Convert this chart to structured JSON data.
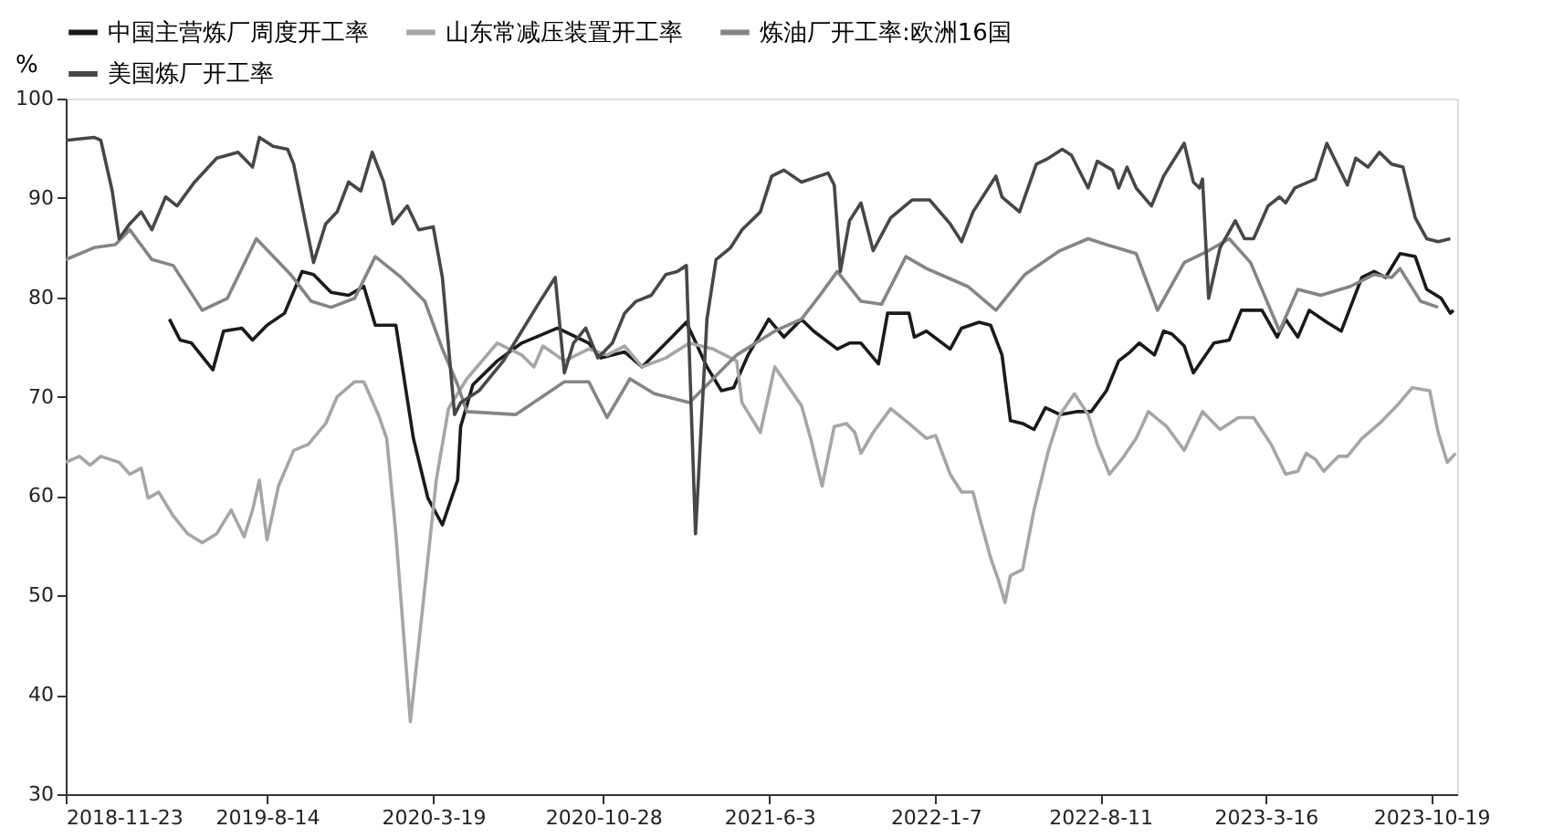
{
  "chart_data": {
    "type": "line",
    "ylabel": "%",
    "xlim": [
      "2018-11-23",
      "2023-11-22"
    ],
    "ylim": [
      30,
      100
    ],
    "yticks": [
      30,
      40,
      50,
      60,
      70,
      80,
      90,
      100
    ],
    "xticks": [
      {
        "value": "2018-11-23",
        "label": "2018-11-23"
      },
      {
        "value": "2019-08-14",
        "label": "2019-8-14"
      },
      {
        "value": "2020-03-19",
        "label": "2020-3-19"
      },
      {
        "value": "2020-10-28",
        "label": "2020-10-28"
      },
      {
        "value": "2021-06-03",
        "label": "2021-6-3"
      },
      {
        "value": "2022-01-07",
        "label": "2022-1-7"
      },
      {
        "value": "2022-08-11",
        "label": "2022-8-11"
      },
      {
        "value": "2023-03-16",
        "label": "2023-3-16"
      },
      {
        "value": "2023-10-19",
        "label": "2023-10-19"
      }
    ],
    "grid": false,
    "legend": "top",
    "marker": "none",
    "line_style": "solid",
    "series": [
      {
        "name": "中国主营炼厂周度开工率",
        "color": "#1a1a1a",
        "x": [
          "2019-04-08",
          "2019-04-22",
          "2019-05-07",
          "2019-06-04",
          "2019-06-18",
          "2019-07-12",
          "2019-07-26",
          "2019-08-14",
          "2019-09-06",
          "2019-09-29",
          "2019-10-14",
          "2019-11-06",
          "2019-11-29",
          "2019-12-19",
          "2020-01-03",
          "2020-01-30",
          "2020-02-22",
          "2020-03-12",
          "2020-03-31",
          "2020-04-20",
          "2020-04-24",
          "2020-05-10",
          "2020-06-11",
          "2020-07-13",
          "2020-08-29",
          "2020-10-09",
          "2020-10-25",
          "2020-11-25",
          "2020-12-18",
          "2021-01-26",
          "2021-02-14",
          "2021-03-13",
          "2021-04-01",
          "2021-04-17",
          "2021-05-06",
          "2021-06-02",
          "2021-06-22",
          "2021-07-15",
          "2021-07-31",
          "2021-08-31",
          "2021-09-16",
          "2021-10-01",
          "2021-10-24",
          "2021-11-05",
          "2021-12-03",
          "2021-12-10",
          "2021-12-26",
          "2022-01-26",
          "2022-02-10",
          "2022-03-05",
          "2022-03-20",
          "2022-04-04",
          "2022-04-15",
          "2022-05-01",
          "2022-05-16",
          "2022-05-31",
          "2022-06-19",
          "2022-07-11",
          "2022-07-30",
          "2022-08-19",
          "2022-09-04",
          "2022-09-19",
          "2022-10-01",
          "2022-10-21",
          "2022-11-02",
          "2022-11-13",
          "2022-11-29",
          "2022-12-11",
          "2023-01-07",
          "2023-01-27",
          "2023-02-12",
          "2023-03-11",
          "2023-03-31",
          "2023-04-11",
          "2023-04-27",
          "2023-05-12",
          "2023-06-04",
          "2023-06-23",
          "2023-07-20",
          "2023-08-05",
          "2023-08-20",
          "2023-09-08",
          "2023-09-28",
          "2023-10-13",
          "2023-11-01",
          "2023-11-13",
          "2023-11-17"
        ],
        "values": [
          77.8,
          75.7,
          75.4,
          72.7,
          76.6,
          76.9,
          75.7,
          77.2,
          78.4,
          82.6,
          82.3,
          80.5,
          80.2,
          81.1,
          77.2,
          77.2,
          65.8,
          59.8,
          57.1,
          61.6,
          67.0,
          71.2,
          73.6,
          75.4,
          76.9,
          75.4,
          73.9,
          74.5,
          73.0,
          76.0,
          77.5,
          73.0,
          70.6,
          70.9,
          74.2,
          77.8,
          76.0,
          77.8,
          76.6,
          74.8,
          75.4,
          75.4,
          73.3,
          78.4,
          78.4,
          76.0,
          76.6,
          74.8,
          76.9,
          77.5,
          77.2,
          74.2,
          67.6,
          67.3,
          66.7,
          68.9,
          68.2,
          68.5,
          68.5,
          70.6,
          73.6,
          74.5,
          75.4,
          74.2,
          76.6,
          76.3,
          75.1,
          72.4,
          75.4,
          75.7,
          78.7,
          78.7,
          76.0,
          77.8,
          76.0,
          78.7,
          77.5,
          76.6,
          82.0,
          82.6,
          82.0,
          84.4,
          84.1,
          80.8,
          79.9,
          78.4,
          78.7
        ]
      },
      {
        "name": "山东常减压装置开工率",
        "color": "#a6a6a6",
        "x": [
          "2018-11-23",
          "2018-12-11",
          "2018-12-25",
          "2019-01-08",
          "2019-02-01",
          "2019-02-15",
          "2019-03-02",
          "2019-03-11",
          "2019-03-25",
          "2019-04-13",
          "2019-05-02",
          "2019-05-21",
          "2019-06-09",
          "2019-06-28",
          "2019-07-15",
          "2019-07-26",
          "2019-08-04",
          "2019-08-14",
          "2019-08-29",
          "2019-09-18",
          "2019-10-07",
          "2019-10-30",
          "2019-11-14",
          "2019-12-07",
          "2019-12-19",
          "2020-01-07",
          "2020-01-18",
          "2020-01-30",
          "2020-02-18",
          "2020-03-08",
          "2020-03-23",
          "2020-04-08",
          "2020-05-02",
          "2020-06-11",
          "2020-07-13",
          "2020-07-29",
          "2020-08-10",
          "2020-09-07",
          "2020-10-09",
          "2020-11-02",
          "2020-11-25",
          "2020-12-18",
          "2021-01-18",
          "2021-02-18",
          "2021-03-21",
          "2021-04-21",
          "2021-04-28",
          "2021-05-22",
          "2021-06-10",
          "2021-07-15",
          "2021-07-27",
          "2021-08-11",
          "2021-08-27",
          "2021-09-12",
          "2021-09-23",
          "2021-10-01",
          "2021-10-17",
          "2021-11-09",
          "2021-12-03",
          "2021-12-26",
          "2022-01-07",
          "2022-01-26",
          "2022-02-10",
          "2022-02-25",
          "2022-03-05",
          "2022-03-20",
          "2022-03-31",
          "2022-04-08",
          "2022-04-15",
          "2022-05-01",
          "2022-05-16",
          "2022-06-04",
          "2022-06-19",
          "2022-07-08",
          "2022-07-26",
          "2022-08-07",
          "2022-08-23",
          "2022-09-08",
          "2022-09-27",
          "2022-10-13",
          "2022-11-06",
          "2022-11-29",
          "2022-12-23",
          "2023-01-15",
          "2023-02-08",
          "2023-02-28",
          "2023-03-23",
          "2023-04-11",
          "2023-04-27",
          "2023-05-08",
          "2023-05-20",
          "2023-05-31",
          "2023-06-19",
          "2023-07-01",
          "2023-07-20",
          "2023-08-12",
          "2023-09-04",
          "2023-09-24",
          "2023-10-17",
          "2023-10-28",
          "2023-11-09",
          "2023-11-20"
        ],
        "values": [
          63.4,
          64.0,
          63.1,
          64.0,
          63.4,
          62.2,
          62.8,
          59.8,
          60.4,
          58.0,
          56.2,
          55.3,
          56.2,
          58.6,
          55.9,
          58.6,
          61.6,
          55.6,
          61.0,
          64.6,
          65.2,
          67.3,
          70.0,
          71.5,
          71.5,
          68.2,
          65.8,
          56.2,
          37.3,
          50.8,
          61.6,
          68.8,
          71.8,
          75.4,
          74.2,
          73.0,
          75.1,
          73.6,
          74.8,
          74.2,
          75.1,
          73.0,
          73.9,
          75.4,
          74.8,
          73.6,
          69.4,
          66.4,
          73.0,
          69.1,
          65.8,
          61.0,
          67.0,
          67.3,
          66.4,
          64.3,
          66.4,
          68.8,
          67.3,
          65.8,
          66.1,
          62.2,
          60.4,
          60.4,
          58.0,
          53.8,
          51.4,
          49.3,
          52.0,
          52.6,
          58.6,
          64.6,
          68.2,
          70.3,
          68.2,
          65.2,
          62.2,
          63.7,
          65.8,
          68.5,
          67.0,
          64.6,
          68.5,
          66.7,
          67.9,
          67.9,
          65.2,
          62.2,
          62.5,
          64.3,
          63.7,
          62.5,
          64.0,
          64.0,
          65.8,
          67.3,
          69.1,
          70.9,
          70.6,
          66.4,
          63.4,
          64.3
        ]
      },
      {
        "name": "炼油厂开工率:欧洲16国",
        "color": "#858585",
        "x": [
          "2018-11-23",
          "2018-12-30",
          "2019-01-27",
          "2019-02-15",
          "2019-03-16",
          "2019-04-13",
          "2019-05-21",
          "2019-06-23",
          "2019-07-31",
          "2019-09-14",
          "2019-10-11",
          "2019-11-06",
          "2019-12-07",
          "2020-01-03",
          "2020-02-06",
          "2020-03-08",
          "2020-03-31",
          "2020-04-20",
          "2020-05-02",
          "2020-07-05",
          "2020-09-07",
          "2020-10-09",
          "2020-11-02",
          "2020-12-02",
          "2021-01-03",
          "2021-02-18",
          "2021-04-21",
          "2021-06-10",
          "2021-07-15",
          "2021-08-08",
          "2021-08-31",
          "2021-10-01",
          "2021-10-28",
          "2021-11-29",
          "2021-12-26",
          "2022-02-18",
          "2022-03-27",
          "2022-05-04",
          "2022-06-19",
          "2022-07-26",
          "2022-08-19",
          "2022-09-27",
          "2022-10-25",
          "2022-11-29",
          "2022-12-31",
          "2023-01-27",
          "2023-02-24",
          "2023-04-03",
          "2023-04-27",
          "2023-05-27",
          "2023-07-05",
          "2023-08-05",
          "2023-08-28",
          "2023-09-08",
          "2023-10-05",
          "2023-10-28"
        ],
        "values": [
          83.8,
          85.0,
          85.3,
          86.8,
          83.8,
          83.2,
          78.7,
          79.9,
          85.9,
          82.3,
          79.6,
          79.0,
          79.9,
          84.1,
          82.0,
          79.6,
          74.8,
          71.2,
          68.5,
          68.2,
          71.5,
          71.5,
          67.9,
          71.8,
          70.3,
          69.4,
          74.2,
          76.6,
          77.8,
          80.2,
          82.6,
          79.6,
          79.3,
          84.1,
          82.9,
          81.1,
          78.7,
          82.3,
          84.7,
          85.9,
          85.3,
          84.4,
          78.7,
          83.5,
          84.7,
          85.9,
          83.5,
          76.6,
          80.8,
          80.2,
          81.1,
          82.3,
          82.0,
          82.9,
          79.6,
          79.0
        ]
      },
      {
        "name": "美国炼厂开工率",
        "color": "#474747",
        "x": [
          "2018-11-23",
          "2018-12-30",
          "2019-01-08",
          "2019-01-23",
          "2019-02-01",
          "2019-02-15",
          "2019-03-02",
          "2019-03-16",
          "2019-04-03",
          "2019-04-18",
          "2019-05-11",
          "2019-06-09",
          "2019-07-07",
          "2019-07-26",
          "2019-08-04",
          "2019-08-22",
          "2019-09-10",
          "2019-09-18",
          "2019-09-29",
          "2019-10-14",
          "2019-10-30",
          "2019-11-14",
          "2019-11-29",
          "2019-12-15",
          "2019-12-30",
          "2020-01-14",
          "2020-01-26",
          "2020-02-14",
          "2020-02-29",
          "2020-03-19",
          "2020-03-31",
          "2020-04-16",
          "2020-04-24",
          "2020-05-18",
          "2020-06-19",
          "2020-07-13",
          "2020-08-06",
          "2020-08-26",
          "2020-09-07",
          "2020-09-19",
          "2020-10-05",
          "2020-10-21",
          "2020-11-09",
          "2020-11-25",
          "2020-12-10",
          "2020-12-30",
          "2021-01-18",
          "2021-02-02",
          "2021-02-14",
          "2021-02-26",
          "2021-03-13",
          "2021-03-25",
          "2021-04-13",
          "2021-04-28",
          "2021-05-22",
          "2021-06-06",
          "2021-06-22",
          "2021-07-15",
          "2021-08-19",
          "2021-08-27",
          "2021-09-04",
          "2021-09-16",
          "2021-10-01",
          "2021-10-17",
          "2021-11-09",
          "2021-12-07",
          "2021-12-30",
          "2022-01-26",
          "2022-02-10",
          "2022-02-25",
          "2022-03-27",
          "2022-04-04",
          "2022-04-27",
          "2022-05-19",
          "2022-06-04",
          "2022-06-22",
          "2022-07-04",
          "2022-07-26",
          "2022-08-07",
          "2022-08-27",
          "2022-09-04",
          "2022-09-15",
          "2022-09-27",
          "2022-10-17",
          "2022-11-02",
          "2022-11-29",
          "2022-12-11",
          "2022-12-19",
          "2022-12-23",
          "2022-12-31",
          "2023-01-15",
          "2023-02-04",
          "2023-02-16",
          "2023-02-28",
          "2023-03-19",
          "2023-04-03",
          "2023-04-11",
          "2023-04-23",
          "2023-05-20",
          "2023-06-04",
          "2023-07-01",
          "2023-07-12",
          "2023-07-28",
          "2023-08-12",
          "2023-08-28",
          "2023-09-12",
          "2023-09-28",
          "2023-10-13",
          "2023-10-28",
          "2023-11-13"
        ],
        "values": [
          95.8,
          96.1,
          95.8,
          90.7,
          85.9,
          87.4,
          88.6,
          86.8,
          90.1,
          89.2,
          91.6,
          94.0,
          94.6,
          93.1,
          96.1,
          95.2,
          94.9,
          93.4,
          89.2,
          83.5,
          87.4,
          88.6,
          91.6,
          90.7,
          94.6,
          91.6,
          87.4,
          89.2,
          86.8,
          87.1,
          82.0,
          68.2,
          69.4,
          70.6,
          73.6,
          76.6,
          79.6,
          82.0,
          72.4,
          75.4,
          76.9,
          73.9,
          75.4,
          78.4,
          79.6,
          80.2,
          82.3,
          82.6,
          83.2,
          56.2,
          77.8,
          83.8,
          85.0,
          86.8,
          88.6,
          92.2,
          92.8,
          91.6,
          92.5,
          91.3,
          82.6,
          87.7,
          89.5,
          84.7,
          88.0,
          89.8,
          89.8,
          87.4,
          85.6,
          88.6,
          92.2,
          90.1,
          88.6,
          93.4,
          94.0,
          94.9,
          94.3,
          91.0,
          93.7,
          92.8,
          91.0,
          93.1,
          91.0,
          89.2,
          92.2,
          95.5,
          91.6,
          91.0,
          91.9,
          79.9,
          85.0,
          87.7,
          85.9,
          85.9,
          89.2,
          90.1,
          89.5,
          91.0,
          91.9,
          95.5,
          91.3,
          94.0,
          93.1,
          94.6,
          93.4,
          93.1,
          88.0,
          85.9,
          85.6,
          85.9
        ]
      }
    ]
  }
}
